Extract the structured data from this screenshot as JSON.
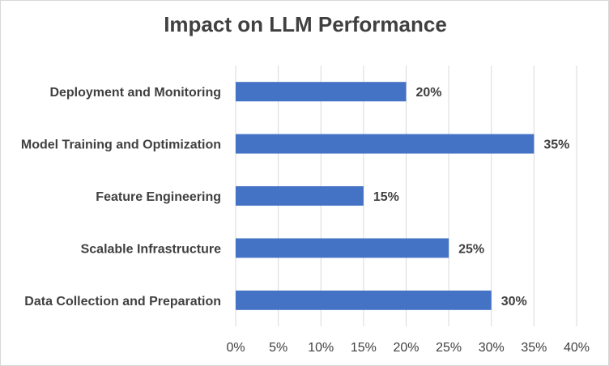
{
  "chart_data": {
    "type": "bar",
    "orientation": "horizontal",
    "title": "Impact on LLM Performance",
    "categories": [
      "Data Collection and Preparation",
      "Scalable Infrastructure",
      "Feature Engineering",
      "Model Training and Optimization",
      "Deployment and Monitoring"
    ],
    "values": [
      30,
      25,
      15,
      35,
      20
    ],
    "value_labels": [
      "30%",
      "25%",
      "15%",
      "35%",
      "20%"
    ],
    "xlim": [
      0,
      40
    ],
    "x_ticks": [
      0,
      5,
      10,
      15,
      20,
      25,
      30,
      35,
      40
    ],
    "x_tick_labels": [
      "0%",
      "5%",
      "10%",
      "15%",
      "20%",
      "25%",
      "30%",
      "35%",
      "40%"
    ],
    "xlabel": "",
    "ylabel": "",
    "grid": true,
    "legend": "none",
    "bar_color": "#4472C4"
  }
}
